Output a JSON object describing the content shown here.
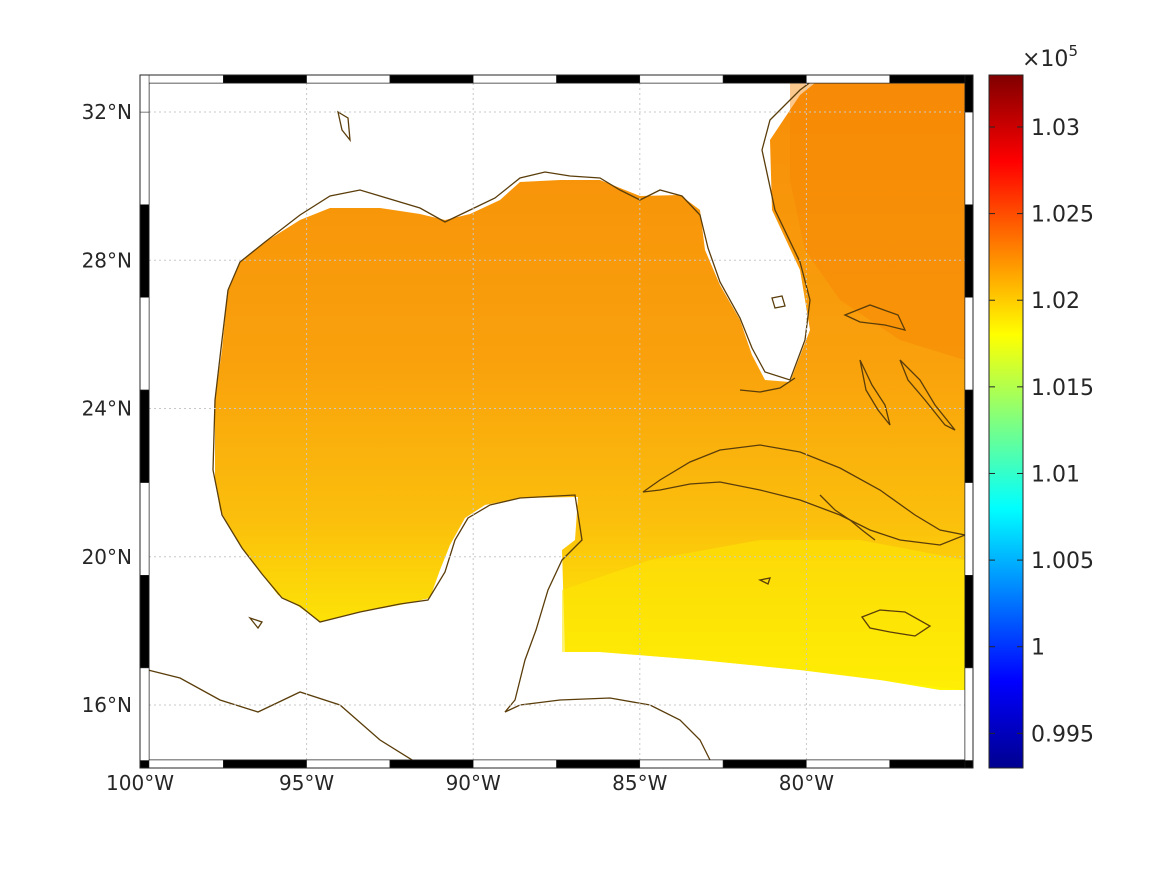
{
  "map": {
    "lat_labels": [
      "32°N",
      "28°N",
      "24°N",
      "20°N",
      "16°N"
    ],
    "lon_labels": [
      "100°W",
      "95°W",
      "90°W",
      "85°W",
      "80°W"
    ],
    "lat_values": [
      32,
      28,
      24,
      20,
      16
    ],
    "lon_values": [
      -100,
      -95,
      -90,
      -85,
      -80
    ],
    "lat_range": [
      14.3,
      33.0
    ],
    "lon_range": [
      -100,
      -75
    ],
    "grid": true,
    "coast_color": "#5a3d0a",
    "field_colors": {
      "gulf": "#f99c0c",
      "atlantic": "#f78a08",
      "caribbean_north": "#fbb50c",
      "caribbean_south": "#fde805"
    }
  },
  "colorbar": {
    "multiplier_base": "×10",
    "multiplier_exp": "5",
    "tick_labels": [
      "1.03",
      "1.025",
      "1.02",
      "1.015",
      "1.01",
      "1.005",
      "1",
      "0.995"
    ],
    "tick_values": [
      1.03,
      1.025,
      1.02,
      1.015,
      1.01,
      1.005,
      1.0,
      0.995
    ],
    "range": [
      0.993,
      1.033
    ],
    "colormap": "jet"
  }
}
